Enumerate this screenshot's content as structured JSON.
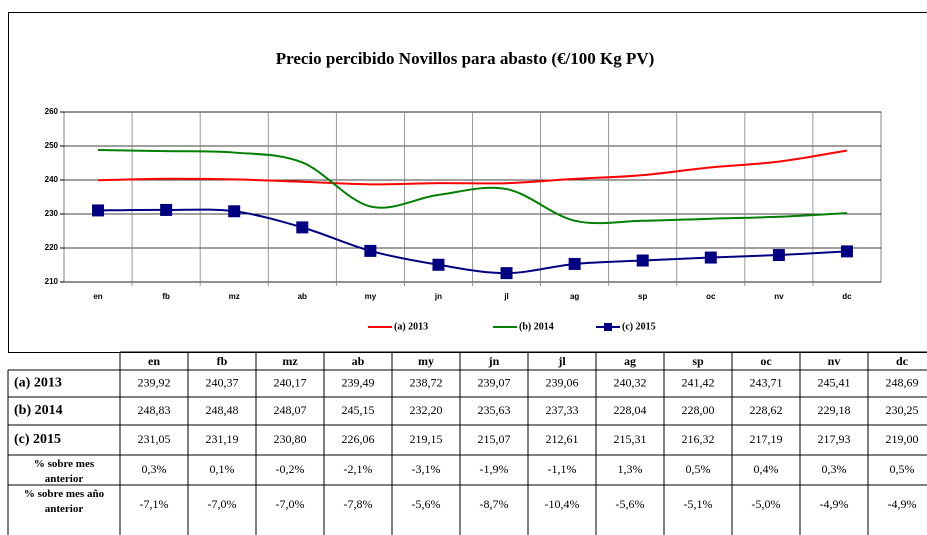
{
  "chart_data": {
    "type": "line",
    "title": "Precio percibido Novillos para abasto (€/100 Kg PV)",
    "categories": [
      "en",
      "fb",
      "mz",
      "ab",
      "my",
      "jn",
      "jl",
      "ag",
      "sp",
      "oc",
      "nv",
      "dc"
    ],
    "ylim": [
      210,
      260
    ],
    "yticks": [
      210,
      220,
      230,
      240,
      250,
      260
    ],
    "grid": true,
    "legend": "bottom",
    "series": [
      {
        "name": "(a) 2013",
        "color": "#ff0000",
        "marker": "none",
        "values": [
          239.92,
          240.37,
          240.17,
          239.49,
          238.72,
          239.07,
          239.06,
          240.32,
          241.42,
          243.71,
          245.41,
          248.69
        ],
        "value_labels": [
          "239,92",
          "240,37",
          "240,17",
          "239,49",
          "238,72",
          "239,07",
          "239,06",
          "240,32",
          "241,42",
          "243,71",
          "245,41",
          "248,69"
        ]
      },
      {
        "name": "(b) 2014",
        "color": "#008000",
        "marker": "none",
        "values": [
          248.83,
          248.48,
          248.07,
          245.15,
          232.2,
          235.63,
          237.33,
          228.04,
          228.0,
          228.62,
          229.18,
          230.25
        ],
        "value_labels": [
          "248,83",
          "248,48",
          "248,07",
          "245,15",
          "232,20",
          "235,63",
          "237,33",
          "228,04",
          "228,00",
          "228,62",
          "229,18",
          "230,25"
        ]
      },
      {
        "name": "(c) 2015",
        "color": "#000080",
        "marker": "square",
        "values": [
          231.05,
          231.19,
          230.8,
          226.06,
          219.15,
          215.07,
          212.61,
          215.31,
          216.32,
          217.19,
          217.93,
          219.0
        ],
        "value_labels": [
          "231,05",
          "231,19",
          "230,80",
          "226,06",
          "219,15",
          "215,07",
          "212,61",
          "215,31",
          "216,32",
          "217,19",
          "217,93",
          "219,00"
        ]
      }
    ],
    "extra_rows": [
      {
        "label": "% sobre mes anterior",
        "cells": [
          "0,3%",
          "0,1%",
          "-0,2%",
          "-2,1%",
          "-3,1%",
          "-1,9%",
          "-1,1%",
          "1,3%",
          "0,5%",
          "0,4%",
          "0,3%",
          "0,5%"
        ]
      },
      {
        "label": "% sobre mes año anterior",
        "cells": [
          "-7,1%",
          "-7,0%",
          "-7,0%",
          "-7,8%",
          "-5,6%",
          "-8,7%",
          "-10,4%",
          "-5,6%",
          "-5,1%",
          "-5,0%",
          "-4,9%",
          "-4,9%"
        ]
      }
    ]
  }
}
